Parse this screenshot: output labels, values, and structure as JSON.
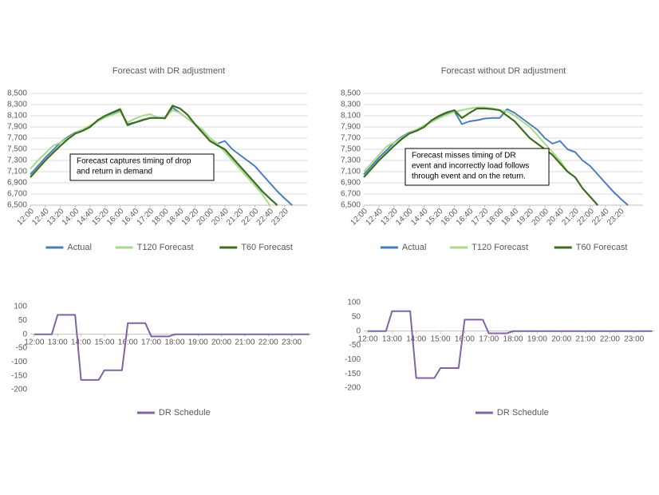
{
  "chart_data": [
    {
      "type": "line",
      "title": "Forecast with DR adjustment",
      "x": [
        720,
        740,
        760,
        780,
        800,
        820,
        840,
        860,
        880,
        900,
        920,
        940,
        960,
        980,
        1000,
        1020,
        1040,
        1060,
        1080,
        1100,
        1120,
        1140,
        1160,
        1180,
        1200,
        1220,
        1240,
        1260,
        1280,
        1300,
        1320,
        1340,
        1360,
        1380,
        1400,
        1420
      ],
      "xlim": [
        720,
        1460
      ],
      "xticks": [
        {
          "value": 720,
          "label": "12:00"
        },
        {
          "value": 760,
          "label": "12:40"
        },
        {
          "value": 800,
          "label": "13:20"
        },
        {
          "value": 840,
          "label": "14:00"
        },
        {
          "value": 880,
          "label": "14:40"
        },
        {
          "value": 920,
          "label": "15:20"
        },
        {
          "value": 960,
          "label": "16:00"
        },
        {
          "value": 1000,
          "label": "16:40"
        },
        {
          "value": 1040,
          "label": "17:20"
        },
        {
          "value": 1080,
          "label": "18:00"
        },
        {
          "value": 1120,
          "label": "18:40"
        },
        {
          "value": 1160,
          "label": "19:20"
        },
        {
          "value": 1200,
          "label": "20:00"
        },
        {
          "value": 1240,
          "label": "20:40"
        },
        {
          "value": 1280,
          "label": "21:20"
        },
        {
          "value": 1320,
          "label": "22:00"
        },
        {
          "value": 1360,
          "label": "22:40"
        },
        {
          "value": 1400,
          "label": "23:20"
        }
      ],
      "ylim": [
        6500,
        8500
      ],
      "yticks": [
        {
          "value": 6500,
          "label": "6,500"
        },
        {
          "value": 6700,
          "label": "6,700"
        },
        {
          "value": 6900,
          "label": "6,900"
        },
        {
          "value": 7100,
          "label": "7,100"
        },
        {
          "value": 7300,
          "label": "7,300"
        },
        {
          "value": 7500,
          "label": "7,500"
        },
        {
          "value": 7700,
          "label": "7,700"
        },
        {
          "value": 7900,
          "label": "7,900"
        },
        {
          "value": 8100,
          "label": "8,100"
        },
        {
          "value": 8300,
          "label": "8,300"
        },
        {
          "value": 8500,
          "label": "8,500"
        }
      ],
      "grid": true,
      "annotation": [
        "Forecast captures timing of drop",
        "and return in demand"
      ],
      "series": [
        {
          "name": "Actual",
          "color": "#4a7ebb",
          "values": [
            7050,
            7200,
            7350,
            7480,
            7620,
            7720,
            7800,
            7850,
            7920,
            8000,
            8080,
            8130,
            8200,
            7950,
            7980,
            8030,
            8060,
            8070,
            8050,
            8250,
            8150,
            8050,
            7950,
            7850,
            7700,
            7600,
            7650,
            7500,
            7400,
            7300,
            7200,
            7050,
            6900,
            6750,
            6620,
            6500
          ]
        },
        {
          "name": "T120 Forecast",
          "color": "#a9d98a",
          "values": [
            7150,
            7300,
            7430,
            7560,
            7620,
            7700,
            7790,
            7850,
            7930,
            8000,
            8070,
            8120,
            8170,
            7980,
            8050,
            8100,
            8130,
            8070,
            8060,
            8200,
            8150,
            8050,
            7950,
            7850,
            7700,
            7600,
            7450,
            7300,
            7150,
            7000,
            6850,
            6700,
            6500,
            null,
            null,
            null
          ]
        },
        {
          "name": "T60 Forecast",
          "color": "#3b6e1f",
          "values": [
            7000,
            7150,
            7300,
            7430,
            7560,
            7680,
            7780,
            7830,
            7900,
            8020,
            8100,
            8160,
            8220,
            7930,
            7980,
            8020,
            8060,
            8060,
            8060,
            8280,
            8230,
            8120,
            7950,
            7800,
            7650,
            7570,
            7500,
            7350,
            7200,
            7050,
            6900,
            6750,
            6620,
            6500,
            null,
            null
          ]
        }
      ]
    },
    {
      "type": "line",
      "title": "Forecast without DR adjustment",
      "x": [
        720,
        740,
        760,
        780,
        800,
        820,
        840,
        860,
        880,
        900,
        920,
        940,
        960,
        980,
        1000,
        1020,
        1040,
        1060,
        1080,
        1100,
        1120,
        1140,
        1160,
        1180,
        1200,
        1220,
        1240,
        1260,
        1280,
        1300,
        1320,
        1340,
        1360,
        1380,
        1400,
        1420
      ],
      "xlim": [
        720,
        1460
      ],
      "xticks": [
        {
          "value": 720,
          "label": "12:00"
        },
        {
          "value": 760,
          "label": "12:40"
        },
        {
          "value": 800,
          "label": "13:20"
        },
        {
          "value": 840,
          "label": "14:00"
        },
        {
          "value": 880,
          "label": "14:40"
        },
        {
          "value": 920,
          "label": "15:20"
        },
        {
          "value": 960,
          "label": "16:00"
        },
        {
          "value": 1000,
          "label": "16:40"
        },
        {
          "value": 1040,
          "label": "17:20"
        },
        {
          "value": 1080,
          "label": "18:00"
        },
        {
          "value": 1120,
          "label": "18:40"
        },
        {
          "value": 1160,
          "label": "19:20"
        },
        {
          "value": 1200,
          "label": "20:00"
        },
        {
          "value": 1240,
          "label": "20:40"
        },
        {
          "value": 1280,
          "label": "21:20"
        },
        {
          "value": 1320,
          "label": "22:00"
        },
        {
          "value": 1360,
          "label": "22:40"
        },
        {
          "value": 1400,
          "label": "23:20"
        }
      ],
      "ylim": [
        6500,
        8500
      ],
      "yticks": [
        {
          "value": 6500,
          "label": "6,500"
        },
        {
          "value": 6700,
          "label": "6,700"
        },
        {
          "value": 6900,
          "label": "6,900"
        },
        {
          "value": 7100,
          "label": "7,100"
        },
        {
          "value": 7300,
          "label": "7,300"
        },
        {
          "value": 7500,
          "label": "7,500"
        },
        {
          "value": 7700,
          "label": "7,700"
        },
        {
          "value": 7900,
          "label": "7,900"
        },
        {
          "value": 8100,
          "label": "8,100"
        },
        {
          "value": 8300,
          "label": "8,300"
        },
        {
          "value": 8500,
          "label": "8,500"
        }
      ],
      "grid": true,
      "annotation": [
        "Forecast misses timing of DR",
        "event and incorrectly load follows",
        "through event and on the return."
      ],
      "series": [
        {
          "name": "Actual",
          "color": "#4a7ebb",
          "values": [
            7050,
            7200,
            7350,
            7480,
            7620,
            7720,
            7800,
            7850,
            7920,
            8000,
            8080,
            8130,
            8180,
            7950,
            8000,
            8020,
            8050,
            8060,
            8060,
            8220,
            8150,
            8050,
            7950,
            7850,
            7700,
            7600,
            7650,
            7500,
            7450,
            7300,
            7200,
            7050,
            6900,
            6750,
            6620,
            6500
          ]
        },
        {
          "name": "T120 Forecast",
          "color": "#a9d98a",
          "values": [
            7100,
            7250,
            7400,
            7550,
            7620,
            7700,
            7790,
            7850,
            7930,
            7990,
            8060,
            8120,
            8170,
            8200,
            8230,
            8250,
            8250,
            8230,
            8200,
            8180,
            8100,
            8000,
            7900,
            7750,
            7600,
            7450,
            7300,
            7100,
            null,
            null,
            null,
            null,
            null,
            null,
            null,
            null
          ]
        },
        {
          "name": "T60 Forecast",
          "color": "#3b6e1f",
          "values": [
            7000,
            7150,
            7300,
            7430,
            7560,
            7680,
            7780,
            7830,
            7900,
            8020,
            8100,
            8160,
            8200,
            8060,
            8150,
            8230,
            8230,
            8220,
            8200,
            8100,
            8000,
            7850,
            7700,
            7600,
            7500,
            7400,
            7250,
            7100,
            7000,
            6800,
            6650,
            6500,
            null,
            null,
            null,
            null
          ]
        }
      ]
    },
    {
      "type": "line",
      "x": [
        720,
        765,
        780,
        825,
        840,
        885,
        900,
        945,
        960,
        1005,
        1020,
        1065,
        1080,
        1425
      ],
      "xlim": [
        710,
        1430
      ],
      "xticks": [
        {
          "value": 720,
          "label": "12:00"
        },
        {
          "value": 780,
          "label": "13:00"
        },
        {
          "value": 840,
          "label": "14:00"
        },
        {
          "value": 900,
          "label": "15:00"
        },
        {
          "value": 960,
          "label": "16:00"
        },
        {
          "value": 1020,
          "label": "17:00"
        },
        {
          "value": 1080,
          "label": "18:00"
        },
        {
          "value": 1140,
          "label": "19:00"
        },
        {
          "value": 1200,
          "label": "20:00"
        },
        {
          "value": 1260,
          "label": "21:00"
        },
        {
          "value": 1320,
          "label": "22:00"
        },
        {
          "value": 1380,
          "label": "23:00"
        }
      ],
      "ylim": [
        -200,
        100
      ],
      "yticks": [
        -200,
        -150,
        -100,
        -50,
        0,
        50,
        100
      ],
      "grid": false,
      "series": [
        {
          "name": "DR Schedule",
          "color": "#8064a2",
          "values": [
            0,
            0,
            70,
            70,
            -165,
            -165,
            -130,
            -130,
            40,
            40,
            -8,
            -8,
            0,
            0
          ]
        }
      ]
    },
    {
      "type": "line",
      "x": [
        720,
        765,
        780,
        825,
        840,
        885,
        900,
        945,
        960,
        1005,
        1020,
        1065,
        1080,
        1425
      ],
      "xlim": [
        710,
        1430
      ],
      "xticks": [
        {
          "value": 720,
          "label": "12:00"
        },
        {
          "value": 780,
          "label": "13:00"
        },
        {
          "value": 840,
          "label": "14:00"
        },
        {
          "value": 900,
          "label": "15:00"
        },
        {
          "value": 960,
          "label": "16:00"
        },
        {
          "value": 1020,
          "label": "17:00"
        },
        {
          "value": 1080,
          "label": "18:00"
        },
        {
          "value": 1140,
          "label": "19:00"
        },
        {
          "value": 1200,
          "label": "20:00"
        },
        {
          "value": 1260,
          "label": "21:00"
        },
        {
          "value": 1320,
          "label": "22:00"
        },
        {
          "value": 1380,
          "label": "23:00"
        }
      ],
      "ylim": [
        -200,
        100
      ],
      "yticks": [
        -200,
        -150,
        -100,
        -50,
        0,
        50,
        100
      ],
      "grid": false,
      "series": [
        {
          "name": "DR Schedule",
          "color": "#8064a2",
          "values": [
            0,
            0,
            70,
            70,
            -165,
            -165,
            -130,
            -130,
            40,
            40,
            -8,
            -8,
            0,
            0
          ]
        }
      ]
    }
  ]
}
